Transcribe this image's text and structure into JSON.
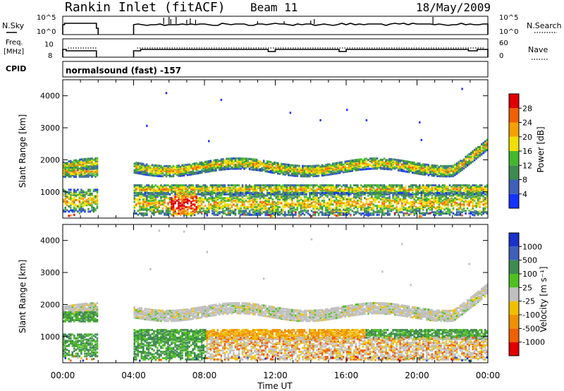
{
  "header": {
    "title": "Rankin Inlet (fitACF)",
    "beam": "Beam 11",
    "date": "18/May/2009",
    "cpid_label": "CPID",
    "program": "normalsound (fast) -157"
  },
  "panels": {
    "nsky_label": "N.Sky",
    "nsearch_label": "N.Search",
    "freq_label_1": "Freq.",
    "freq_label_2": "[MHz]",
    "nave_label": "Nave",
    "nsky_ticks": [
      "10^5",
      "10^0"
    ],
    "nsearch_ticks": [
      "10^5",
      "10^0"
    ],
    "freq_ticks": [
      "10",
      "8"
    ],
    "nave_ticks": [
      "60",
      "0"
    ]
  },
  "x_axis": {
    "label": "Time UT",
    "ticks": [
      "00:00",
      "04:00",
      "08:00",
      "12:00",
      "16:00",
      "20:00",
      "00:00"
    ]
  },
  "chart_data": [
    {
      "type": "heatmap",
      "name": "power",
      "ylabel": "Slant Range [km]",
      "ylim": [
        180,
        4500
      ],
      "yticks": [
        1000,
        2000,
        3000,
        4000
      ],
      "xlim_hours": [
        0,
        24
      ],
      "colorbar_label": "Power [dB]",
      "colorbar_ticks": [
        "4",
        "8",
        "12",
        "16",
        "20",
        "24",
        "28"
      ],
      "colorbar_colors": [
        "#1433ff",
        "#3f5fb8",
        "#3f8a4f",
        "#45b830",
        "#f0e000",
        "#f5a000",
        "#f06000",
        "#e00000"
      ],
      "data_gap_hours": [
        2.0,
        4.0
      ],
      "scatter_bands_km": [
        [
          1450,
          2100
        ],
        [
          850,
          1250
        ],
        [
          200,
          900
        ]
      ]
    },
    {
      "type": "heatmap",
      "name": "velocity",
      "ylabel": "Slant Range [km]",
      "ylim": [
        180,
        4500
      ],
      "yticks": [
        1000,
        2000,
        3000,
        4000
      ],
      "xlim_hours": [
        0,
        24
      ],
      "colorbar_label": "Velocity [m s⁻¹]",
      "colorbar_ticks": [
        "1000",
        "500",
        "100",
        "25",
        "-25",
        "-100",
        "-500",
        "-1000"
      ],
      "colorbar_colors": [
        "#1a32c8",
        "#3f5fb8",
        "#3f8a50",
        "#4fc020",
        "#c0c0c0",
        "#f0c000",
        "#f09000",
        "#f06000",
        "#e00000"
      ],
      "data_gap_hours": [
        2.0,
        4.0
      ],
      "scatter_bands_km": [
        [
          1450,
          2100
        ],
        [
          850,
          1250
        ],
        [
          200,
          900
        ]
      ]
    }
  ]
}
